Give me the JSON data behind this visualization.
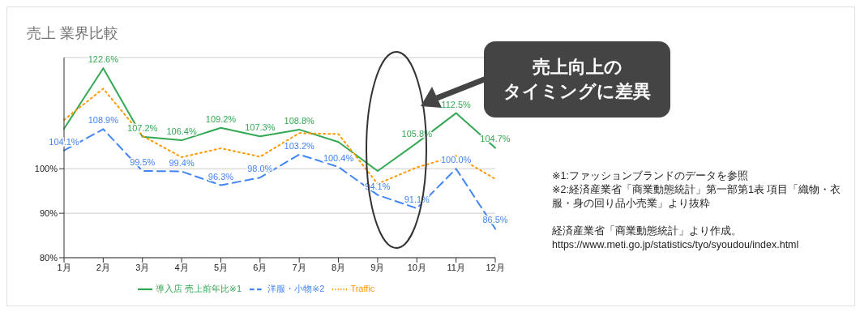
{
  "chart_data": {
    "type": "line",
    "title": "売上 業界比較",
    "categories": [
      "1月",
      "2月",
      "3月",
      "4月",
      "5月",
      "6月",
      "7月",
      "8月",
      "9月",
      "10月",
      "11月",
      "12月"
    ],
    "series": [
      {
        "name": "導入店 売上前年比※1",
        "color": "#34a853",
        "line_style": "solid",
        "values": [
          109,
          122.6,
          107.2,
          106.4,
          109.2,
          107.3,
          108.8,
          106,
          99.5,
          105.8,
          112.5,
          104.7
        ],
        "value_labels": [
          null,
          "122.6%",
          "107.2%",
          "106.4%",
          "109.2%",
          "107.3%",
          "108.8%",
          null,
          null,
          "105.8%",
          "112.5%",
          "104.7%"
        ]
      },
      {
        "name": "洋服・小物※2",
        "color": "#4285f4",
        "line_style": "dashed",
        "values": [
          104.1,
          108.9,
          99.5,
          99.4,
          96.3,
          98.0,
          103.2,
          100.4,
          94.1,
          91.1,
          100.0,
          86.5
        ],
        "value_labels": [
          "104.1%",
          "108.9%",
          "99.5%",
          "99.4%",
          "96.3%",
          "98.0%",
          "103.2%",
          "100.4%",
          "94.1%",
          "91.1%",
          "100.0%",
          "86.5%"
        ]
      },
      {
        "name": "Traffic",
        "color": "#ff9900",
        "line_style": "dotted",
        "values": [
          111,
          118,
          107.4,
          102.6,
          104.6,
          102.7,
          108,
          107.8,
          96.6,
          100.3,
          102.9,
          97.7
        ]
      }
    ],
    "ylim": [
      80,
      125
    ],
    "yticks": [
      {
        "value": 80,
        "label": "80%"
      },
      {
        "value": 90,
        "label": "90%"
      },
      {
        "value": 100,
        "label": "100%"
      }
    ],
    "grid": "y",
    "legend": "bottom",
    "marker": "none",
    "annotations": [
      "売上向上の",
      "タイミングに差異",
      "※1:ファッションブランドのデータを参照",
      "※2:経済産業省「商業動態統計」第一部第1表 項目「織物・衣服・身の回り品小売業」より抜粋",
      "経済産業省「商業動態統計」より作成。",
      "https://www.meti.go.jp/statistics/tyo/syoudou/index.html"
    ]
  }
}
